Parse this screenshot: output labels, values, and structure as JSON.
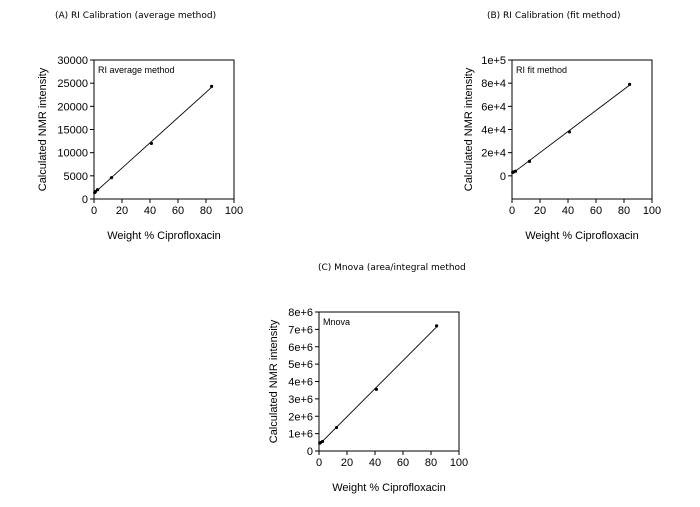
{
  "chart_data": [
    {
      "type": "scatter",
      "title": "(A) RI Calibration (average method)",
      "inset_label": "RI average method",
      "xlabel": "Weight % Ciprofloxacin",
      "ylabel": "Calculated NMR intensity",
      "xlim": [
        0,
        100
      ],
      "ylim": [
        0,
        30000
      ],
      "x_ticks": [
        "0",
        "20",
        "40",
        "60",
        "80",
        "100"
      ],
      "y_ticks": [
        "0",
        "5000",
        "10000",
        "15000",
        "20000",
        "25000",
        "30000"
      ],
      "x": [
        0.5,
        1,
        2.5,
        12.5,
        41,
        84
      ],
      "y": [
        1400,
        1600,
        2000,
        4600,
        12000,
        24300
      ],
      "trendline": true
    },
    {
      "type": "scatter",
      "title": "(B) RI Calibration (fit method)",
      "inset_label": "RI fit method",
      "xlabel": "Weight % Ciprofloxacin",
      "ylabel": "Calculated NMR intensity",
      "xlim": [
        0,
        100
      ],
      "ylim": [
        -20000,
        100000
      ],
      "x_ticks": [
        "0",
        "20",
        "40",
        "60",
        "80",
        "100"
      ],
      "y_ticks": [
        "0",
        "2e+4",
        "4e+4",
        "6e+4",
        "8e+4",
        "1e+5"
      ],
      "x": [
        0.5,
        1,
        2.5,
        12.5,
        41,
        84
      ],
      "y": [
        3000,
        3300,
        4000,
        12500,
        38000,
        79000
      ],
      "trendline": true
    },
    {
      "type": "scatter",
      "title": "(C) Mnova (area/integral method",
      "inset_label": "Mnova",
      "xlabel": "Weight % Ciprofloxacin",
      "ylabel": "Calculated NMR intensity",
      "xlim": [
        0,
        100
      ],
      "ylim": [
        0,
        8000000
      ],
      "x_ticks": [
        "0",
        "20",
        "40",
        "60",
        "80",
        "100"
      ],
      "y_ticks": [
        "0",
        "1e+6",
        "2e+6",
        "3e+6",
        "4e+6",
        "5e+6",
        "6e+6",
        "7e+6",
        "8e+6"
      ],
      "x": [
        0.5,
        1,
        2.5,
        12.5,
        41,
        84
      ],
      "y": [
        450000,
        480000,
        550000,
        1350000,
        3550000,
        7200000
      ],
      "trendline": true
    }
  ]
}
